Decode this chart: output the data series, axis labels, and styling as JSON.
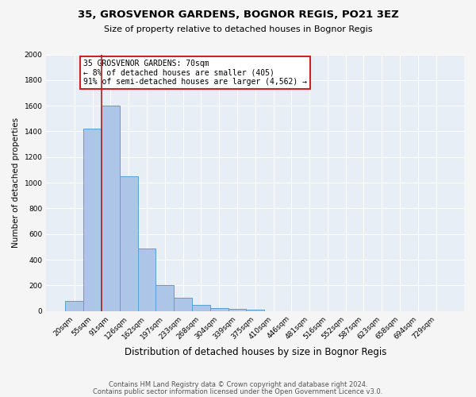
{
  "title": "35, GROSVENOR GARDENS, BOGNOR REGIS, PO21 3EZ",
  "subtitle": "Size of property relative to detached houses in Bognor Regis",
  "xlabel": "Distribution of detached houses by size in Bognor Regis",
  "ylabel": "Number of detached properties",
  "bin_labels": [
    "20sqm",
    "55sqm",
    "91sqm",
    "126sqm",
    "162sqm",
    "197sqm",
    "233sqm",
    "268sqm",
    "304sqm",
    "339sqm",
    "375sqm",
    "410sqm",
    "446sqm",
    "481sqm",
    "516sqm",
    "552sqm",
    "587sqm",
    "623sqm",
    "658sqm",
    "694sqm",
    "729sqm"
  ],
  "bar_values": [
    80,
    1420,
    1600,
    1050,
    490,
    205,
    105,
    45,
    25,
    15,
    10,
    0,
    0,
    0,
    0,
    0,
    0,
    0,
    0,
    0,
    0
  ],
  "bar_color": "#adc6e8",
  "bar_edge_color": "#5a9fd4",
  "vline_x": 1.5,
  "vline_color": "#aa2222",
  "annotation_text": "35 GROSVENOR GARDENS: 70sqm\n← 8% of detached houses are smaller (405)\n91% of semi-detached houses are larger (4,562) →",
  "annotation_box_color": "#ffffff",
  "annotation_box_edge": "#cc2222",
  "ylim": [
    0,
    2000
  ],
  "yticks": [
    0,
    200,
    400,
    600,
    800,
    1000,
    1200,
    1400,
    1600,
    1800,
    2000
  ],
  "bg_color": "#e8eef5",
  "fig_bg_color": "#f5f5f5",
  "grid_color": "#ffffff",
  "footer1": "Contains HM Land Registry data © Crown copyright and database right 2024.",
  "footer2": "Contains public sector information licensed under the Open Government Licence v3.0."
}
